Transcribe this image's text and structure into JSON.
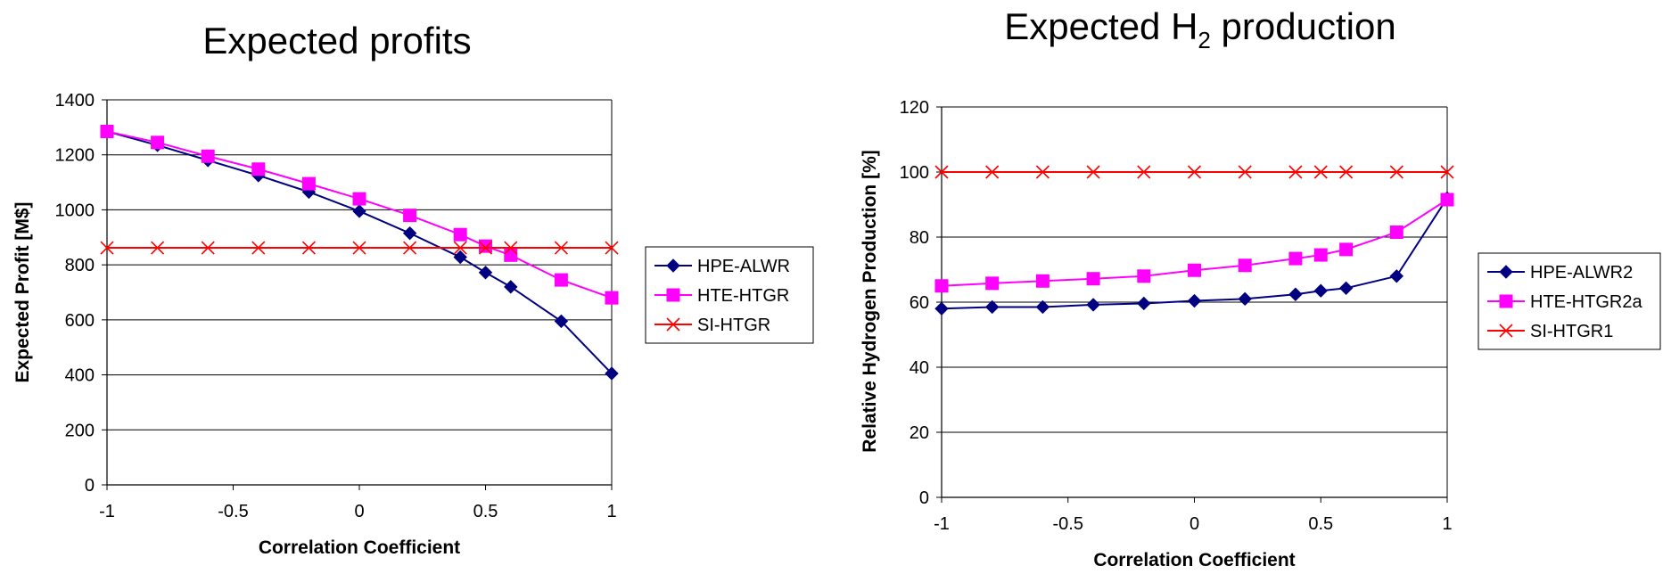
{
  "chart_data": [
    {
      "type": "line",
      "title": "Expected profits",
      "xlabel": "Correlation Coefficient",
      "ylabel": "Expected Profit [M$]",
      "xlim": [
        -1,
        1
      ],
      "ylim": [
        0,
        1400
      ],
      "x_ticks": [
        "-1",
        "-0.5",
        "0",
        "0.5",
        "1"
      ],
      "y_ticks": [
        "0",
        "200",
        "400",
        "600",
        "800",
        "1000",
        "1200",
        "1400"
      ],
      "grid": "horizontal",
      "legend": "right",
      "series": [
        {
          "name": "HPE-ALWR",
          "color": "#000080",
          "marker": "diamond",
          "x": [
            -1,
            -0.8,
            -0.6,
            -0.4,
            -0.2,
            0,
            0.2,
            0.4,
            0.5,
            0.6,
            0.8,
            1
          ],
          "values": [
            1285,
            1235,
            1180,
            1125,
            1065,
            995,
            915,
            828,
            772,
            720,
            595,
            405
          ]
        },
        {
          "name": "HTE-HTGR",
          "color": "#FF00FF",
          "marker": "square",
          "x": [
            -1,
            -0.8,
            -0.6,
            -0.4,
            -0.2,
            0,
            0.2,
            0.4,
            0.5,
            0.6,
            0.8,
            1
          ],
          "values": [
            1285,
            1245,
            1195,
            1148,
            1095,
            1040,
            980,
            910,
            868,
            835,
            745,
            680
          ]
        },
        {
          "name": "SI-HTGR",
          "color": "#FF0000",
          "marker": "x",
          "x": [
            -1,
            -0.8,
            -0.6,
            -0.4,
            -0.2,
            0,
            0.2,
            0.4,
            0.5,
            0.6,
            0.8,
            1
          ],
          "values": [
            862,
            862,
            862,
            862,
            862,
            862,
            862,
            862,
            862,
            862,
            862,
            862
          ]
        }
      ]
    },
    {
      "type": "line",
      "title": "Expected H",
      "title_sub": "2",
      "title_rest": " production",
      "xlabel": "Correlation Coefficient",
      "ylabel": "Relative Hydrogen Production [%]",
      "xlim": [
        -1,
        1
      ],
      "ylim": [
        0,
        120
      ],
      "x_ticks": [
        "-1",
        "-0.5",
        "0",
        "0.5",
        "1"
      ],
      "y_ticks": [
        "0",
        "20",
        "40",
        "60",
        "80",
        "100",
        "120"
      ],
      "grid": "horizontal",
      "legend": "right",
      "series": [
        {
          "name": "HPE-ALWR2",
          "color": "#000080",
          "marker": "diamond",
          "x": [
            -1,
            -0.8,
            -0.6,
            -0.4,
            -0.2,
            0,
            0.2,
            0.4,
            0.5,
            0.6,
            0.8,
            1
          ],
          "values": [
            58,
            58.5,
            58.5,
            59.2,
            59.6,
            60.4,
            61,
            62.4,
            63.5,
            64.3,
            68,
            92
          ]
        },
        {
          "name": "HTE-HTGR2a",
          "color": "#FF00FF",
          "marker": "square",
          "x": [
            -1,
            -0.8,
            -0.6,
            -0.4,
            -0.2,
            0,
            0.2,
            0.4,
            0.5,
            0.6,
            0.8,
            1
          ],
          "values": [
            65,
            65.8,
            66.5,
            67.2,
            68,
            69.8,
            71.3,
            73.4,
            74.5,
            76.2,
            81.5,
            91.5
          ]
        },
        {
          "name": "SI-HTGR1",
          "color": "#FF0000",
          "marker": "x",
          "x": [
            -1,
            -0.8,
            -0.6,
            -0.4,
            -0.2,
            0,
            0.2,
            0.4,
            0.5,
            0.6,
            0.8,
            1
          ],
          "values": [
            100,
            100,
            100,
            100,
            100,
            100,
            100,
            100,
            100,
            100,
            100,
            100
          ]
        }
      ]
    }
  ]
}
